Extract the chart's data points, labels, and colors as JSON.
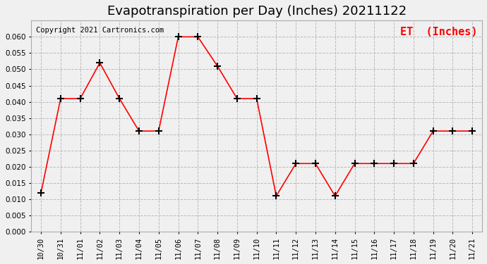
{
  "title": "Evapotranspiration per Day (Inches) 20211122",
  "copyright_text": "Copyright 2021 Cartronics.com",
  "legend_label": "ET  (Inches)",
  "labels": [
    "10/30",
    "10/31",
    "11/01",
    "11/02",
    "11/03",
    "11/04",
    "11/05",
    "11/06",
    "11/07",
    "11/08",
    "11/09",
    "11/10",
    "11/11",
    "11/12",
    "11/13",
    "11/14",
    "11/15",
    "11/16",
    "11/17",
    "11/18",
    "11/19",
    "11/20",
    "11/21"
  ],
  "values": [
    0.012,
    0.041,
    0.041,
    0.052,
    0.041,
    0.031,
    0.031,
    0.06,
    0.06,
    0.051,
    0.041,
    0.041,
    0.011,
    0.021,
    0.021,
    0.011,
    0.021,
    0.021,
    0.021,
    0.021,
    0.031,
    0.031,
    0.031
  ],
  "ylim": [
    0.0,
    0.065
  ],
  "yticks": [
    0.0,
    0.005,
    0.01,
    0.015,
    0.02,
    0.025,
    0.03,
    0.035,
    0.04,
    0.045,
    0.05,
    0.055,
    0.06
  ],
  "line_color": "red",
  "marker_color": "black",
  "grid_color": "#bbbbbb",
  "bg_color": "#f0f0f0",
  "title_fontsize": 13,
  "tick_fontsize": 7.5,
  "legend_fontsize": 11,
  "copyright_fontsize": 7.5
}
